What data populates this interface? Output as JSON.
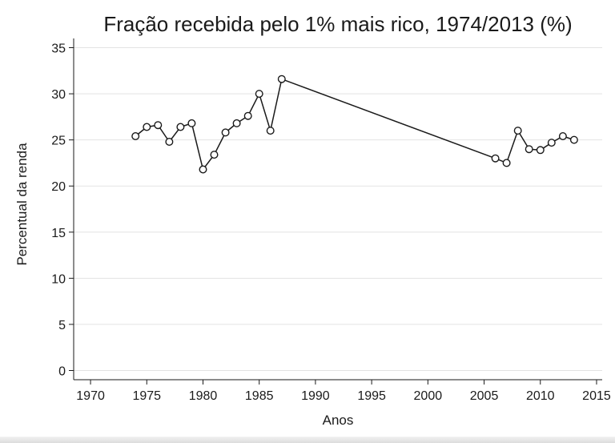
{
  "chart_data": {
    "type": "line",
    "title": "Fração recebida pelo 1% mais rico, 1974/2013 (%)",
    "xlabel": "Anos",
    "ylabel": "Percentual da renda",
    "xlim": [
      1968.5,
      2015.5
    ],
    "ylim": [
      -1,
      36
    ],
    "xticks": [
      1970,
      1975,
      1980,
      1985,
      1990,
      1995,
      2000,
      2005,
      2010,
      2015
    ],
    "yticks": [
      0,
      5,
      10,
      15,
      20,
      25,
      30,
      35
    ],
    "grid": true,
    "legend": "none",
    "series": [
      {
        "x": [
          1974,
          1975,
          1976,
          1977,
          1978,
          1979,
          1980,
          1981,
          1982,
          1983,
          1984,
          1985,
          1986,
          1987,
          2006,
          2007,
          2008,
          2009,
          2010,
          2011,
          2012,
          2013
        ],
        "y": [
          25.4,
          26.4,
          26.6,
          24.8,
          26.4,
          26.8,
          21.8,
          23.4,
          25.8,
          26.8,
          27.6,
          30.0,
          26.0,
          31.6,
          23.0,
          22.5,
          26.0,
          24.0,
          23.9,
          24.7,
          25.4,
          25.0
        ]
      }
    ]
  }
}
